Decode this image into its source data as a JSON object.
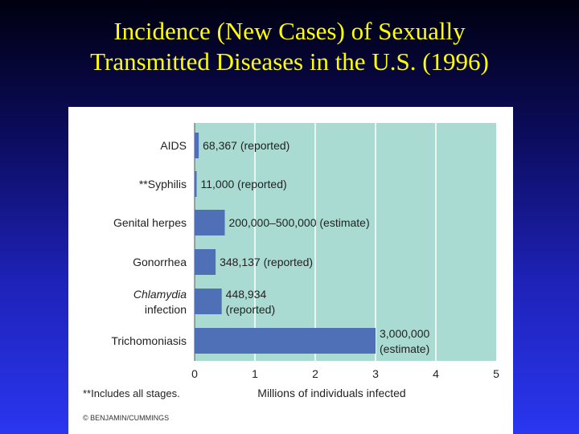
{
  "slide": {
    "title_line1": "Incidence (New Cases) of Sexually",
    "title_line2": "Transmitted Diseases in the U.S. (1996)"
  },
  "colors": {
    "plot_background": "#a9dbd2",
    "bar": "#4f6fb6",
    "gridline": "#ffffff",
    "title_text": "#ffff00"
  },
  "chart_data": {
    "type": "bar",
    "orientation": "horizontal",
    "title": "Incidence (New Cases) of Sexually Transmitted Diseases in the U.S. (1996)",
    "xlabel": "Millions of individuals infected",
    "ylabel": "",
    "xlim": [
      0,
      5
    ],
    "xticks": [
      "0",
      "1",
      "2",
      "3",
      "4",
      "5"
    ],
    "grid": true,
    "categories": [
      {
        "label": "AIDS",
        "italic": false
      },
      {
        "label": "**Syphilis",
        "italic": false
      },
      {
        "label": "Genital herpes",
        "italic": false
      },
      {
        "label": "Gonorrhea",
        "italic": false
      },
      {
        "label_lines": [
          "Chlamydia",
          "infection"
        ],
        "italic_first_line": true
      },
      {
        "label": "Trichomoniasis",
        "italic": false
      }
    ],
    "values": [
      0.068367,
      0.011,
      0.5,
      0.348137,
      0.448934,
      3.0
    ],
    "range_low": [
      null,
      null,
      0.2,
      null,
      null,
      null
    ],
    "data_labels": [
      [
        "68,367 (reported)"
      ],
      [
        "11,000 (reported)"
      ],
      [
        "200,000–500,000 (estimate)"
      ],
      [
        "348,137 (reported)"
      ],
      [
        "448,934",
        "(reported)"
      ],
      [
        "3,000,000",
        "(estimate)"
      ]
    ],
    "footnote": "**Includes all stages.",
    "credit": "© BENJAMIN/CUMMINGS"
  }
}
